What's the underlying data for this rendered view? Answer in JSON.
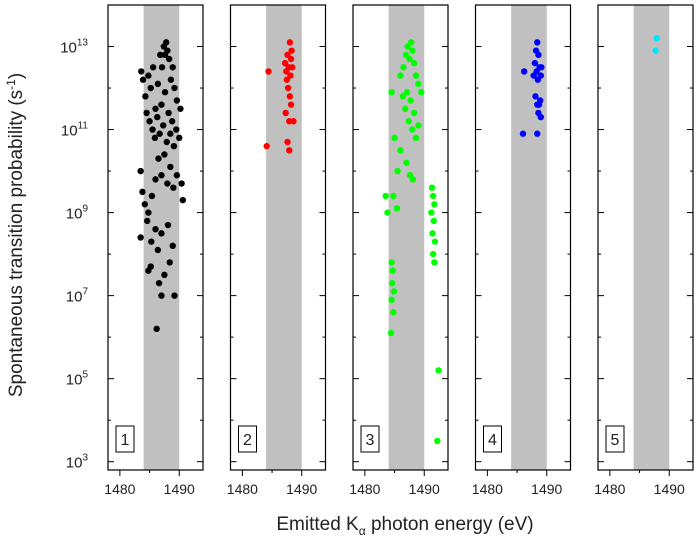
{
  "chart_data": {
    "type": "scatter",
    "ylabel_main": "Spontaneous transition probability (s",
    "ylabel_sup": "-1",
    "ylabel_close": ")",
    "xlabel_main": "Emitted K",
    "xlabel_sub": "α",
    "xlabel_rest": " photon energy (eV)",
    "x_ticks": [
      "1480",
      "1490"
    ],
    "y_ticks": [
      {
        "base": "10",
        "exp": "13"
      },
      {
        "base": "10",
        "exp": "11"
      },
      {
        "base": "10",
        "exp": "9"
      },
      {
        "base": "10",
        "exp": "7"
      },
      {
        "base": "10",
        "exp": "5"
      },
      {
        "base": "10",
        "exp": "3"
      }
    ],
    "xlim": [
      1478,
      1494
    ],
    "ylim_log10": [
      2.8,
      14.0
    ],
    "y_scale": "log",
    "shaded_band": [
      1484,
      1490
    ],
    "band_color": "#c0c0c0",
    "panels": [
      {
        "label": "1",
        "color": "#000000",
        "points": [
          [
            1483.6,
            12.4
          ],
          [
            1483.9,
            12.2
          ],
          [
            1484.3,
            11.8
          ],
          [
            1484.8,
            12.3
          ],
          [
            1485.2,
            12.0
          ],
          [
            1485.6,
            12.5
          ],
          [
            1486.0,
            11.5
          ],
          [
            1486.4,
            12.1
          ],
          [
            1486.8,
            12.8
          ],
          [
            1487.1,
            12.5
          ],
          [
            1487.4,
            13.0
          ],
          [
            1487.6,
            12.8
          ],
          [
            1487.8,
            13.1
          ],
          [
            1488.0,
            12.9
          ],
          [
            1488.3,
            12.7
          ],
          [
            1488.6,
            12.2
          ],
          [
            1488.9,
            12.5
          ],
          [
            1489.2,
            12.0
          ],
          [
            1489.6,
            11.7
          ],
          [
            1490.2,
            11.5
          ],
          [
            1484.5,
            11.4
          ],
          [
            1485.0,
            11.2
          ],
          [
            1485.5,
            11.0
          ],
          [
            1485.9,
            10.8
          ],
          [
            1486.3,
            11.3
          ],
          [
            1486.7,
            10.9
          ],
          [
            1487.0,
            11.6
          ],
          [
            1487.3,
            11.1
          ],
          [
            1487.6,
            11.9
          ],
          [
            1487.9,
            10.7
          ],
          [
            1488.2,
            11.4
          ],
          [
            1488.5,
            10.9
          ],
          [
            1488.8,
            11.2
          ],
          [
            1489.1,
            10.6
          ],
          [
            1489.5,
            11.0
          ],
          [
            1490.0,
            10.8
          ],
          [
            1483.5,
            10.0
          ],
          [
            1483.8,
            9.5
          ],
          [
            1484.2,
            9.2
          ],
          [
            1484.8,
            9.0
          ],
          [
            1485.4,
            9.4
          ],
          [
            1486.0,
            9.8
          ],
          [
            1486.5,
            10.3
          ],
          [
            1487.0,
            9.9
          ],
          [
            1487.5,
            10.4
          ],
          [
            1488.0,
            9.7
          ],
          [
            1488.5,
            10.1
          ],
          [
            1489.0,
            9.6
          ],
          [
            1489.6,
            9.9
          ],
          [
            1490.4,
            9.7
          ],
          [
            1490.6,
            9.3
          ],
          [
            1483.5,
            8.4
          ],
          [
            1484.6,
            8.8
          ],
          [
            1485.3,
            8.3
          ],
          [
            1486.0,
            8.6
          ],
          [
            1486.4,
            8.1
          ],
          [
            1487.0,
            8.5
          ],
          [
            1488.1,
            8.7
          ],
          [
            1488.9,
            8.2
          ],
          [
            1484.8,
            7.6
          ],
          [
            1485.2,
            7.7
          ],
          [
            1486.6,
            7.3
          ],
          [
            1487.5,
            7.5
          ],
          [
            1488.4,
            7.8
          ],
          [
            1487.0,
            7.0
          ],
          [
            1489.2,
            7.0
          ],
          [
            1486.2,
            6.2
          ]
        ]
      },
      {
        "label": "2",
        "color": "#ff0000",
        "points": [
          [
            1484.4,
            12.4
          ],
          [
            1487.2,
            12.6
          ],
          [
            1487.4,
            12.4
          ],
          [
            1487.6,
            12.8
          ],
          [
            1487.8,
            12.5
          ],
          [
            1488.0,
            13.1
          ],
          [
            1488.1,
            12.3
          ],
          [
            1488.2,
            12.7
          ],
          [
            1488.3,
            12.9
          ],
          [
            1488.4,
            12.5
          ],
          [
            1487.5,
            12.2
          ],
          [
            1487.7,
            12.0
          ],
          [
            1488.0,
            11.8
          ],
          [
            1488.2,
            11.6
          ],
          [
            1487.3,
            11.4
          ],
          [
            1487.9,
            11.2
          ],
          [
            1488.6,
            11.2
          ],
          [
            1484.1,
            10.6
          ],
          [
            1487.6,
            10.7
          ],
          [
            1487.9,
            10.5
          ]
        ]
      },
      {
        "label": "3",
        "color": "#00ff00",
        "points": [
          [
            1484.5,
            11.9
          ],
          [
            1486.0,
            12.3
          ],
          [
            1486.5,
            12.5
          ],
          [
            1486.9,
            12.8
          ],
          [
            1487.2,
            13.0
          ],
          [
            1487.5,
            12.7
          ],
          [
            1487.8,
            13.1
          ],
          [
            1488.0,
            12.9
          ],
          [
            1488.3,
            12.6
          ],
          [
            1488.6,
            12.3
          ],
          [
            1489.0,
            12.1
          ],
          [
            1489.5,
            11.9
          ],
          [
            1486.4,
            11.8
          ],
          [
            1486.8,
            11.5
          ],
          [
            1487.1,
            11.9
          ],
          [
            1487.4,
            11.2
          ],
          [
            1487.7,
            11.7
          ],
          [
            1488.0,
            11.0
          ],
          [
            1488.3,
            11.4
          ],
          [
            1488.6,
            10.8
          ],
          [
            1489.0,
            11.1
          ],
          [
            1485.0,
            10.8
          ],
          [
            1486.0,
            10.5
          ],
          [
            1485.5,
            10.0
          ],
          [
            1487.0,
            10.2
          ],
          [
            1487.6,
            9.9
          ],
          [
            1488.1,
            9.8
          ],
          [
            1484.8,
            9.4
          ],
          [
            1483.5,
            9.4
          ],
          [
            1483.8,
            9.0
          ],
          [
            1485.4,
            9.1
          ],
          [
            1491.3,
            9.6
          ],
          [
            1491.5,
            9.4
          ],
          [
            1491.7,
            9.2
          ],
          [
            1491.2,
            9.0
          ],
          [
            1491.6,
            8.8
          ],
          [
            1491.4,
            8.5
          ],
          [
            1491.8,
            8.3
          ],
          [
            1491.5,
            8.0
          ],
          [
            1491.7,
            7.8
          ],
          [
            1484.5,
            7.8
          ],
          [
            1484.7,
            7.6
          ],
          [
            1484.6,
            7.3
          ],
          [
            1484.9,
            7.1
          ],
          [
            1484.5,
            6.9
          ],
          [
            1484.8,
            6.6
          ],
          [
            1484.4,
            6.1
          ],
          [
            1492.4,
            5.2
          ],
          [
            1492.2,
            3.5
          ]
        ]
      },
      {
        "label": "4",
        "color": "#0000ff",
        "points": [
          [
            1486.2,
            12.4
          ],
          [
            1487.8,
            12.3
          ],
          [
            1488.0,
            12.6
          ],
          [
            1488.2,
            12.9
          ],
          [
            1488.4,
            13.1
          ],
          [
            1488.6,
            12.8
          ],
          [
            1488.8,
            12.5
          ],
          [
            1488.3,
            12.4
          ],
          [
            1488.5,
            12.2
          ],
          [
            1489.0,
            12.3
          ],
          [
            1489.1,
            12.5
          ],
          [
            1488.9,
            11.7
          ],
          [
            1488.4,
            11.6
          ],
          [
            1488.1,
            11.8
          ],
          [
            1488.6,
            11.4
          ],
          [
            1489.0,
            11.3
          ],
          [
            1488.7,
            11.6
          ],
          [
            1486.0,
            10.9
          ],
          [
            1488.4,
            10.9
          ]
        ]
      },
      {
        "label": "5",
        "color": "#00e5ff",
        "points": [
          [
            1487.9,
            13.2
          ],
          [
            1487.7,
            12.9
          ]
        ]
      }
    ]
  }
}
